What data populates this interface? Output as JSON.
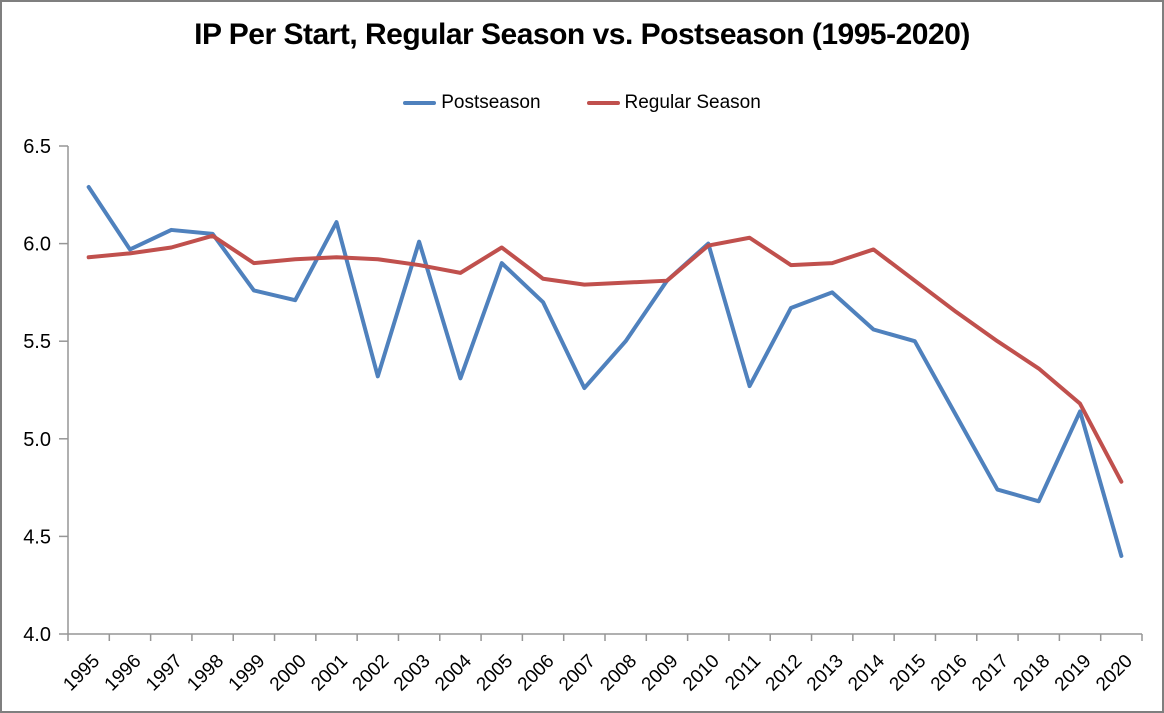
{
  "window": {
    "background": "#FFFFFF",
    "border_color": "#7F7F7F"
  },
  "chart_data": {
    "type": "line",
    "title": "IP Per Start, Regular Season vs. Postseason (1995-2020)",
    "categories": [
      "1995",
      "1996",
      "1997",
      "1998",
      "1999",
      "2000",
      "2001",
      "2002",
      "2003",
      "2004",
      "2005",
      "2006",
      "2007",
      "2008",
      "2009",
      "2010",
      "2011",
      "2012",
      "2013",
      "2014",
      "2015",
      "2016",
      "2017",
      "2018",
      "2019",
      "2020"
    ],
    "series": [
      {
        "name": "Postseason",
        "color": "#4F81BD",
        "values": [
          6.29,
          5.97,
          6.07,
          6.05,
          5.76,
          5.71,
          6.11,
          5.32,
          6.01,
          5.31,
          5.9,
          5.7,
          5.26,
          5.5,
          5.81,
          6.0,
          5.27,
          5.67,
          5.75,
          5.56,
          5.5,
          5.12,
          4.74,
          4.68,
          5.14,
          4.4
        ]
      },
      {
        "name": "Regular Season",
        "color": "#C0504D",
        "values": [
          5.93,
          5.95,
          5.98,
          6.04,
          5.9,
          5.92,
          5.93,
          5.92,
          5.89,
          5.85,
          5.98,
          5.82,
          5.79,
          5.8,
          5.81,
          5.99,
          6.03,
          5.89,
          5.9,
          5.97,
          5.81,
          5.65,
          5.5,
          5.36,
          5.18,
          4.78
        ]
      }
    ],
    "xlabel": "",
    "ylabel": "",
    "ylim": [
      4.0,
      6.5
    ],
    "ytick_step": 0.5,
    "ytick_labels": [
      "6.5",
      "6.0",
      "5.5",
      "5.0",
      "4.5",
      "4.0"
    ],
    "grid": false,
    "legend_position": "top-center",
    "axis_color": "#969696",
    "label_color": "#000000"
  }
}
